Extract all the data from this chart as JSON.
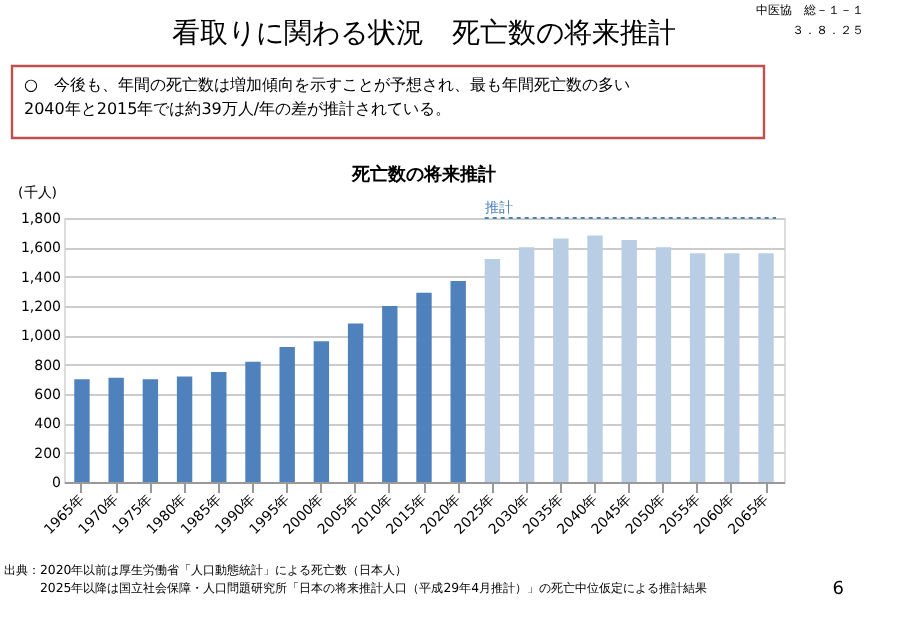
{
  "chart_data": {
    "type": "bar",
    "title": "看取りに関わる状況　死亡数の将来推計",
    "subtitle": "○　今後も、年間の死亡数は増加傾向を示すことが予想され、最も年間死亡数の多い\n2040年と2015年では約39万人/年の差が推計されている。",
    "ylabel": "(千人)",
    "categories": [
      "1965年",
      "1970年",
      "1975年",
      "1980年",
      "1985年",
      "1990年",
      "1995年",
      "2000年",
      "2005年",
      "2010年",
      "2015年",
      "2020年",
      "2025年",
      "2030年",
      "2035年",
      "2040年",
      "2045年",
      "2050年",
      "2055年",
      "2060年",
      "2065年"
    ],
    "values": [
      700,
      710,
      700,
      720,
      750,
      820,
      920,
      960,
      1080,
      1200,
      1290,
      1370,
      1520,
      1600,
      1660,
      1680,
      1650,
      1600,
      1560,
      1560,
      1560
    ],
    "colors": [
      "#4f81bd",
      "#4f81bd",
      "#4f81bd",
      "#4f81bd",
      "#4f81bd",
      "#4f81bd",
      "#4f81bd",
      "#4f81bd",
      "#4f81bd",
      "#4f81bd",
      "#4f81bd",
      "#4f81bd",
      "#b9cde5",
      "#b9cde5",
      "#b9cde5",
      "#b9cde5",
      "#b9cde5",
      "#b9cde5",
      "#b9cde5",
      "#b9cde5",
      "#b9cde5"
    ],
    "ylim": [
      0,
      1800
    ],
    "yticks": [
      {
        "value": 0,
        "label": "0"
      },
      {
        "value": 200,
        "label": "200"
      },
      {
        "value": 400,
        "label": "400"
      },
      {
        "value": 600,
        "label": "600"
      },
      {
        "value": 800,
        "label": "800"
      },
      {
        "value": 1000,
        "label": "1,000"
      },
      {
        "value": 1200,
        "label": "1,200"
      },
      {
        "value": 1400,
        "label": "1,400"
      },
      {
        "value": 1600,
        "label": "1,600"
      },
      {
        "value": 1800,
        "label": "1,800"
      }
    ],
    "grid": "y",
    "annotations": [
      "中医協　総－１－１",
      "３．８．２５",
      "死亡数の将来推計",
      "推計",
      "出典：2020年以前は厚生労働省「人口動態統計」による死亡数（日本人）",
      "2025年以降は国立社会保障・人口問題研究所「日本の将来推計人口（平成29年4月推計）」の死亡中位仮定による推計結果",
      "6"
    ]
  }
}
